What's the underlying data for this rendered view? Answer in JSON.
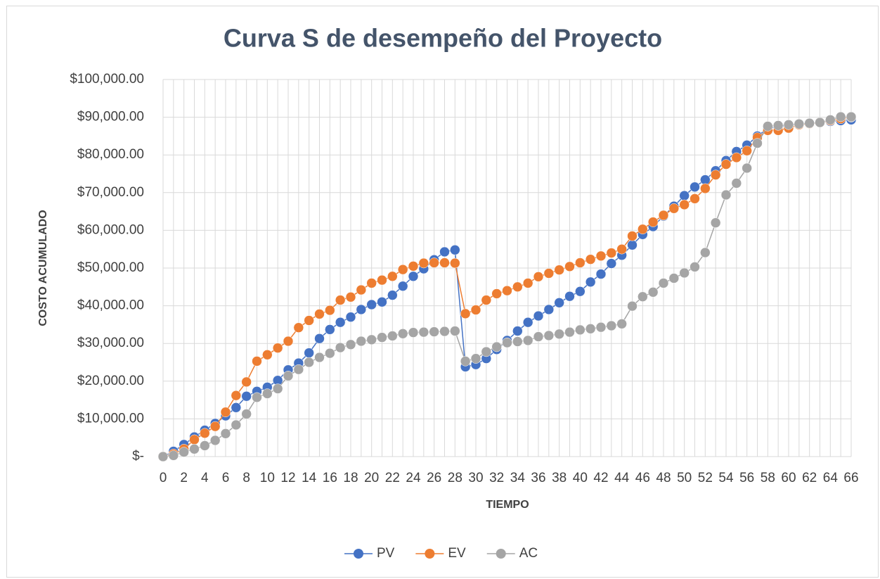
{
  "chart_data": {
    "type": "line",
    "title": "Curva S de desempeño del Proyecto",
    "x_label": "TIEMPO",
    "y_label": "COSTO ACUMULADO",
    "x": [
      0,
      1,
      2,
      3,
      4,
      5,
      6,
      7,
      8,
      9,
      10,
      11,
      12,
      13,
      14,
      15,
      16,
      17,
      18,
      19,
      20,
      21,
      22,
      23,
      24,
      25,
      26,
      27,
      28,
      29,
      30,
      31,
      32,
      33,
      34,
      35,
      36,
      37,
      38,
      39,
      40,
      41,
      42,
      43,
      44,
      45,
      46,
      47,
      48,
      49,
      50,
      51,
      52,
      53,
      54,
      55,
      56,
      57,
      58,
      59,
      60,
      61,
      62,
      63,
      64,
      65,
      66
    ],
    "xlim": [
      0,
      66
    ],
    "xticks": [
      0,
      2,
      4,
      6,
      8,
      10,
      12,
      14,
      16,
      18,
      20,
      22,
      24,
      26,
      28,
      30,
      32,
      34,
      36,
      38,
      40,
      42,
      44,
      46,
      48,
      50,
      52,
      54,
      56,
      58,
      60,
      62,
      64,
      66
    ],
    "ylim": [
      0,
      100000
    ],
    "yticks": [
      {
        "value": 0,
        "label": "$-"
      },
      {
        "value": 10000,
        "label": "$10,000.00"
      },
      {
        "value": 20000,
        "label": "$20,000.00"
      },
      {
        "value": 30000,
        "label": "$30,000.00"
      },
      {
        "value": 40000,
        "label": "$40,000.00"
      },
      {
        "value": 50000,
        "label": "$50,000.00"
      },
      {
        "value": 60000,
        "label": "$60,000.00"
      },
      {
        "value": 70000,
        "label": "$70,000.00"
      },
      {
        "value": 80000,
        "label": "$80,000.00"
      },
      {
        "value": 90000,
        "label": "$90,000.00"
      },
      {
        "value": 100000,
        "label": "$100,000.00"
      }
    ],
    "grid": true,
    "legend": "bottom",
    "series": [
      {
        "name": "PV",
        "color": "#4472c4",
        "values": [
          0,
          1400,
          3200,
          5200,
          7000,
          8800,
          10800,
          13000,
          16000,
          17300,
          18400,
          20200,
          23000,
          24800,
          27500,
          31300,
          33700,
          35600,
          37000,
          39000,
          40300,
          41000,
          42800,
          45200,
          47800,
          49800,
          52200,
          54300,
          54800,
          23800,
          24400,
          26000,
          28400,
          30800,
          33300,
          35600,
          37300,
          39000,
          40800,
          42500,
          43800,
          46300,
          48400,
          51200,
          53400,
          56100,
          58900,
          61000,
          63800,
          66400,
          69200,
          71500,
          73400,
          75800,
          78500,
          80900,
          82600,
          85000,
          87000,
          87500,
          87800,
          88200,
          88400,
          88600,
          88900,
          89100,
          89300
        ]
      },
      {
        "name": "EV",
        "color": "#ed7d31",
        "values": [
          0,
          700,
          2000,
          4500,
          6200,
          8000,
          11800,
          16200,
          19800,
          25300,
          27000,
          28800,
          30600,
          34200,
          36100,
          37800,
          38800,
          41500,
          42300,
          44200,
          46000,
          46800,
          47800,
          49600,
          50500,
          51300,
          51400,
          51400,
          51300,
          37900,
          38900,
          41500,
          43200,
          44000,
          45000,
          46000,
          47700,
          48600,
          49500,
          50400,
          51400,
          52300,
          53200,
          54000,
          55000,
          58500,
          60300,
          62200,
          64000,
          65800,
          66800,
          68400,
          71100,
          74700,
          77500,
          79300,
          81100,
          84600,
          86500,
          86500,
          87100,
          88000,
          88300,
          88600,
          89100,
          89600,
          90000
        ]
      },
      {
        "name": "AC",
        "color": "#a5a5a5",
        "values": [
          0,
          300,
          1200,
          2000,
          2900,
          4300,
          6100,
          8400,
          11300,
          15700,
          16700,
          18000,
          21400,
          23100,
          25000,
          26300,
          27400,
          28900,
          29700,
          30600,
          31000,
          31600,
          32000,
          32600,
          32900,
          33000,
          33100,
          33200,
          33300,
          25300,
          26000,
          27800,
          29100,
          30200,
          30500,
          30800,
          31800,
          32100,
          32500,
          33000,
          33600,
          33900,
          34300,
          34700,
          35200,
          39900,
          42400,
          43600,
          46000,
          47300,
          48700,
          50300,
          54100,
          62000,
          69400,
          72500,
          76500,
          83100,
          87600,
          87800,
          88000,
          88200,
          88400,
          88600,
          89300,
          90100,
          90100
        ]
      }
    ]
  }
}
